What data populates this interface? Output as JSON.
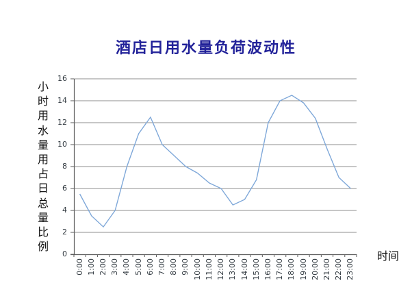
{
  "page": {
    "background": "#ffffff"
  },
  "chart_data": {
    "type": "line",
    "title": "酒店日用水量负荷波动性",
    "title_color": "#222299",
    "ylabel": "小时用水量用占日总量比例",
    "xlabel": "时间",
    "categories": [
      "0:00",
      "1:00",
      "2:00",
      "3:00",
      "4:00",
      "5:00",
      "6:00",
      "7:00",
      "8:00",
      "9:00",
      "10:00",
      "11:00",
      "12:00",
      "13:00",
      "14:00",
      "15:00",
      "16:00",
      "17:00",
      "18:00",
      "19:00",
      "20:00",
      "21:00",
      "22:00",
      "23:00"
    ],
    "values": [
      5.5,
      3.5,
      2.5,
      4,
      8,
      11,
      12.5,
      10,
      9,
      8,
      7.4,
      6.5,
      6,
      4.5,
      5,
      6.8,
      12,
      14,
      14.5,
      13.8,
      12.4,
      9.6,
      7,
      6
    ],
    "ylim": [
      0,
      16
    ],
    "ytick_step": 2,
    "grid": true,
    "legend": false,
    "line_color": "#7fa8d9",
    "gridline_color": "#8f8f8f",
    "axis_color": "#5a5a5a",
    "tick_label_color": "#30383f"
  }
}
